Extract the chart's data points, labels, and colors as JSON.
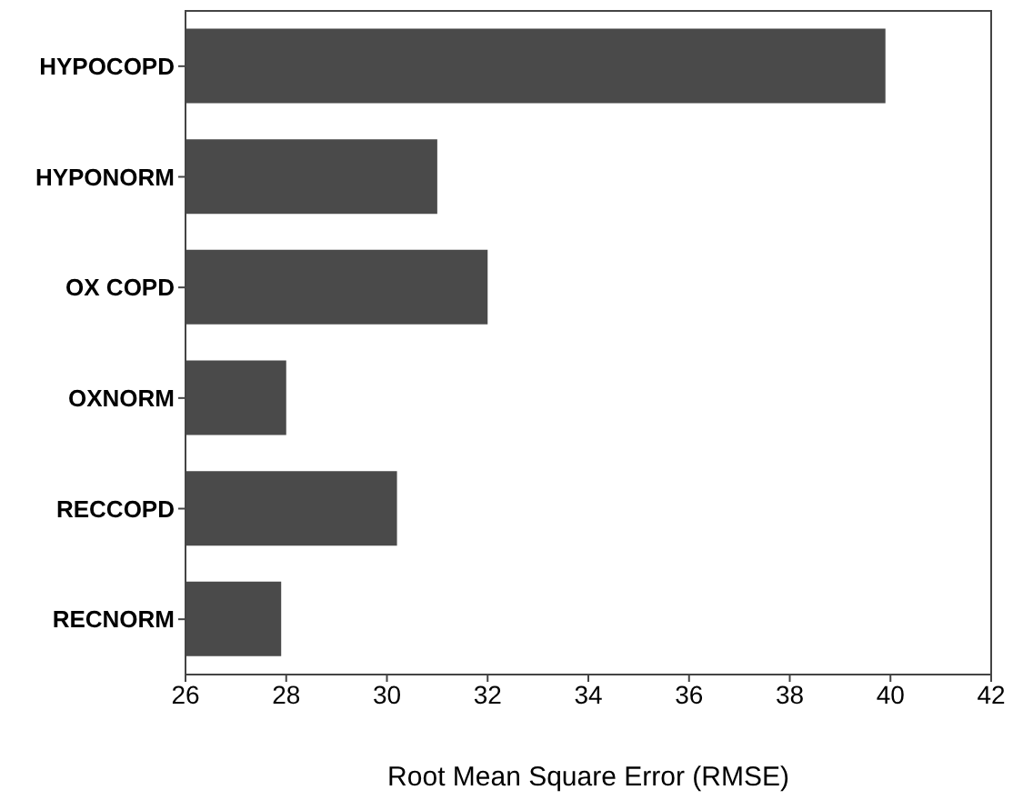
{
  "chart_data": {
    "type": "bar",
    "orientation": "horizontal",
    "xlabel": "Root Mean Square Error (RMSE)",
    "categories": [
      "HYPOCOPD",
      "HYPONORM",
      "OX COPD",
      "OXNORM",
      "RECCOPD",
      "RECNORM"
    ],
    "values": [
      39.9,
      31.0,
      32.0,
      28.0,
      30.2,
      27.9
    ],
    "color": "#4a4a4a",
    "xlim": [
      26,
      42
    ],
    "xticks": [
      26,
      28,
      30,
      32,
      34,
      36,
      38,
      40,
      42
    ],
    "grid": false,
    "legend": false
  }
}
